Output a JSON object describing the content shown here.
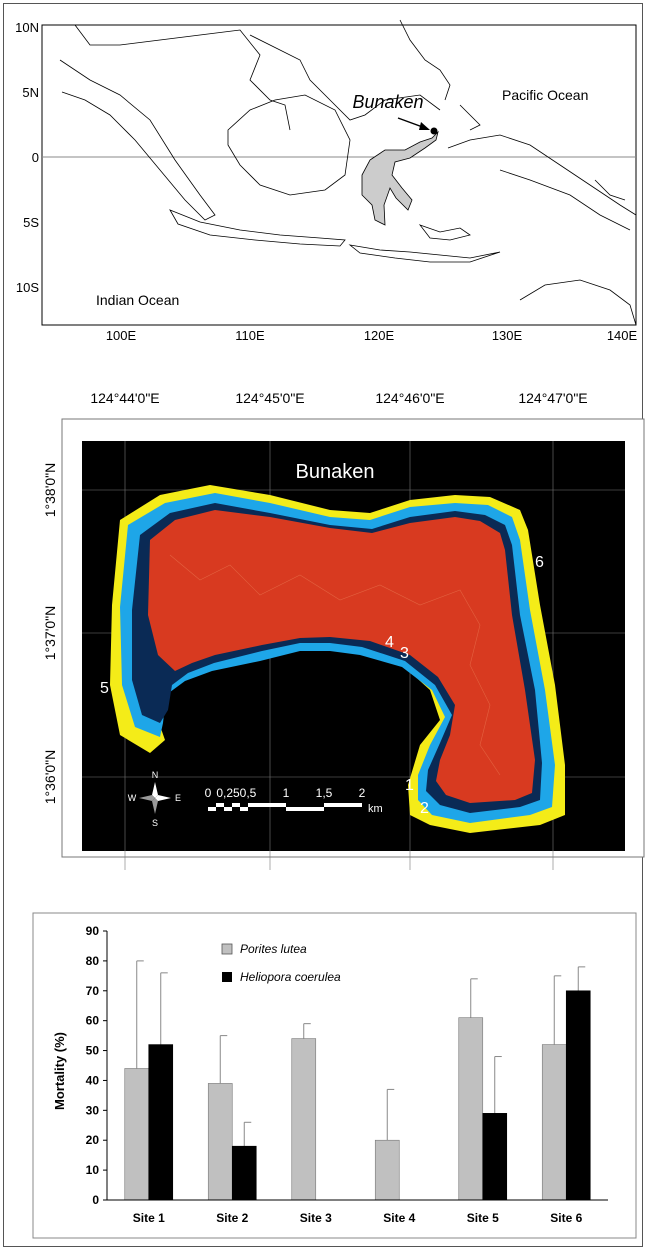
{
  "map_overview": {
    "lat_labels": [
      "10N",
      "5N",
      "0",
      "5S",
      "10S"
    ],
    "lon_labels": [
      "100E",
      "110E",
      "120E",
      "130E",
      "140E"
    ],
    "labels": {
      "bunaken": "Bunaken",
      "pacific": "Pacific Ocean",
      "indian": "Indian Ocean"
    }
  },
  "island_map": {
    "title": "Bunaken",
    "lon_labels": [
      "124°44'0\"E",
      "124°45'0\"E",
      "124°46'0\"E",
      "124°47'0\"E"
    ],
    "lat_labels": [
      "1°38'0\"N",
      "1°37'0\"N",
      "1°36'0\"N"
    ],
    "site_labels": [
      "1",
      "2",
      "3",
      "4",
      "5",
      "6"
    ],
    "scale": {
      "ticks": [
        "0",
        "0,25",
        "0,5",
        "1",
        "1,5",
        "2"
      ],
      "unit": "km"
    },
    "compass": [
      "N",
      "S",
      "W",
      "E"
    ]
  },
  "chart_data": {
    "type": "bar",
    "categories": [
      "Site 1",
      "Site 2",
      "Site 3",
      "Site 4",
      "Site 5",
      "Site 6"
    ],
    "ylabel": "Mortality (%)",
    "ylim": [
      0,
      90
    ],
    "yticks": [
      0,
      10,
      20,
      30,
      40,
      50,
      60,
      70,
      80,
      90
    ],
    "legend_position": "top-center",
    "series": [
      {
        "name": "Porites lutea",
        "color": "#c0c0c0",
        "values": [
          44,
          39,
          54,
          20,
          61,
          52
        ],
        "errors": [
          36,
          16,
          5,
          17,
          13,
          23
        ]
      },
      {
        "name": "Heliopora coerulea",
        "color": "#000000",
        "values": [
          52,
          18,
          null,
          null,
          29,
          70
        ],
        "errors": [
          24,
          8,
          null,
          null,
          19,
          8
        ]
      }
    ]
  }
}
